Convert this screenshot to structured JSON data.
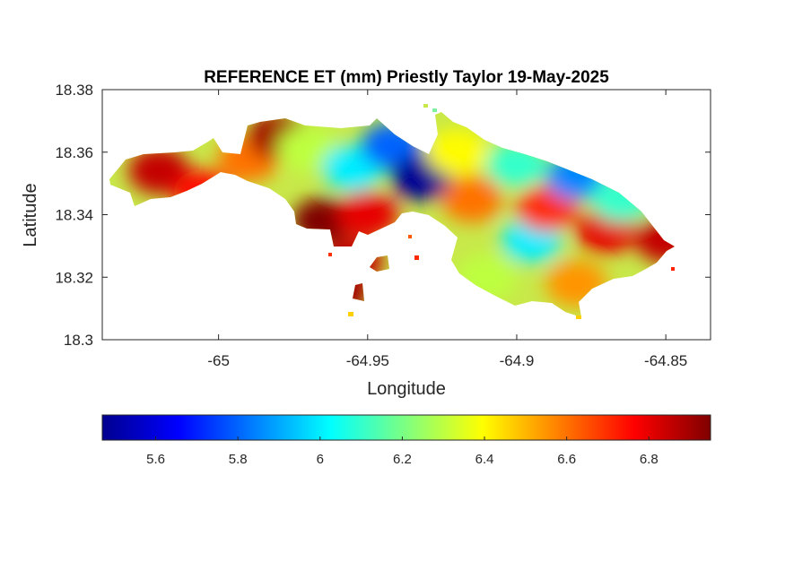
{
  "chart_data": {
    "type": "heatmap",
    "title": "REFERENCE ET (mm) Priestly Taylor 19-May-2025",
    "xlabel": "Longitude",
    "ylabel": "Latitude",
    "xlim": [
      -65.039,
      -64.835
    ],
    "ylim": [
      18.3,
      18.38
    ],
    "xticks": [
      -65,
      -64.95,
      -64.9,
      -64.85
    ],
    "xtick_labels": [
      "-65",
      "-64.95",
      "-64.9",
      "-64.85"
    ],
    "yticks": [
      18.3,
      18.32,
      18.34,
      18.36,
      18.38
    ],
    "ytick_labels": [
      "18.3",
      "18.32",
      "18.34",
      "18.36",
      "18.38"
    ],
    "colormap": "jet",
    "clim": [
      5.47,
      6.95
    ],
    "colorbar_ticks": [
      5.6,
      5.8,
      6,
      6.2,
      6.4,
      6.6,
      6.8
    ],
    "colorbar_tick_labels": [
      "5.6",
      "5.8",
      "6",
      "6.2",
      "6.4",
      "6.6",
      "6.8"
    ],
    "colorbar_location": "southoutside",
    "grid": false,
    "blobs": [
      {
        "lon": -65.02,
        "lat": 18.354,
        "value": 6.85
      },
      {
        "lon": -65.005,
        "lat": 18.347,
        "value": 6.75
      },
      {
        "lon": -64.99,
        "lat": 18.358,
        "value": 6.6
      },
      {
        "lon": -64.98,
        "lat": 18.365,
        "value": 6.9
      },
      {
        "lon": -64.97,
        "lat": 18.361,
        "value": 6.3
      },
      {
        "lon": -64.965,
        "lat": 18.338,
        "value": 6.95
      },
      {
        "lon": -64.95,
        "lat": 18.34,
        "value": 6.8
      },
      {
        "lon": -64.955,
        "lat": 18.355,
        "value": 6.0
      },
      {
        "lon": -64.942,
        "lat": 18.362,
        "value": 5.8
      },
      {
        "lon": -64.932,
        "lat": 18.352,
        "value": 5.5
      },
      {
        "lon": -64.92,
        "lat": 18.36,
        "value": 6.4
      },
      {
        "lon": -64.915,
        "lat": 18.345,
        "value": 6.6
      },
      {
        "lon": -64.9,
        "lat": 18.356,
        "value": 6.1
      },
      {
        "lon": -64.895,
        "lat": 18.332,
        "value": 6.0
      },
      {
        "lon": -64.89,
        "lat": 18.342,
        "value": 6.7
      },
      {
        "lon": -64.88,
        "lat": 18.352,
        "value": 5.85
      },
      {
        "lon": -64.87,
        "lat": 18.335,
        "value": 6.8
      },
      {
        "lon": -64.865,
        "lat": 18.345,
        "value": 6.1
      },
      {
        "lon": -64.91,
        "lat": 18.32,
        "value": 6.3
      },
      {
        "lon": -64.955,
        "lat": 18.325,
        "value": 6.85
      },
      {
        "lon": -64.96,
        "lat": 18.315,
        "value": 6.9
      },
      {
        "lon": -64.88,
        "lat": 18.318,
        "value": 6.55
      },
      {
        "lon": -64.85,
        "lat": 18.332,
        "value": 6.85
      }
    ]
  }
}
